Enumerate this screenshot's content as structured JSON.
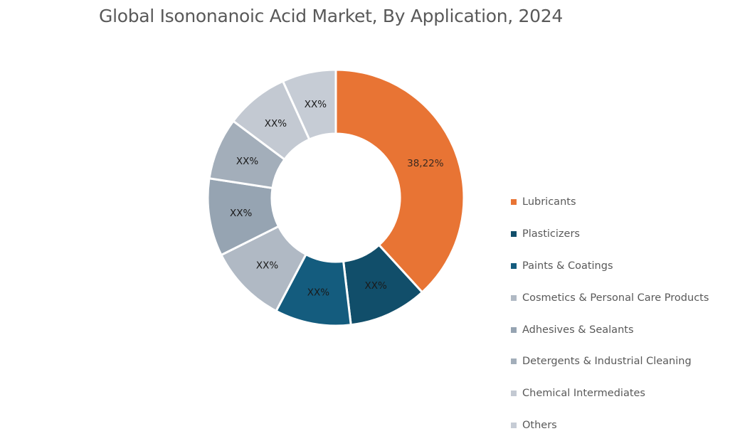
{
  "chart_data": {
    "type": "pie",
    "variant": "donut",
    "title": "Global Isononanoic Acid Market, By Application, 2024",
    "categories": [
      "Lubricants",
      "Plasticizers",
      "Paints & Coatings",
      "Cosmetics & Personal Care Products",
      "Adhesives & Sealants",
      "Detergents & Industrial Cleaning",
      "Chemical Intermediates",
      "Others"
    ],
    "values": [
      38.22,
      9.9,
      9.6,
      9.9,
      9.8,
      7.8,
      8.0,
      6.78
    ],
    "data_labels": [
      "38,22%",
      "XX%",
      "XX%",
      "XX%",
      "XX%",
      "XX%",
      "XX%",
      "XX%"
    ],
    "colors": [
      "#E87434",
      "#114E6A",
      "#145C7E",
      "#B0B9C4",
      "#96A4B2",
      "#A3AEBA",
      "#C3C9D2",
      "#C6CCD5"
    ],
    "legend_position": "right"
  }
}
